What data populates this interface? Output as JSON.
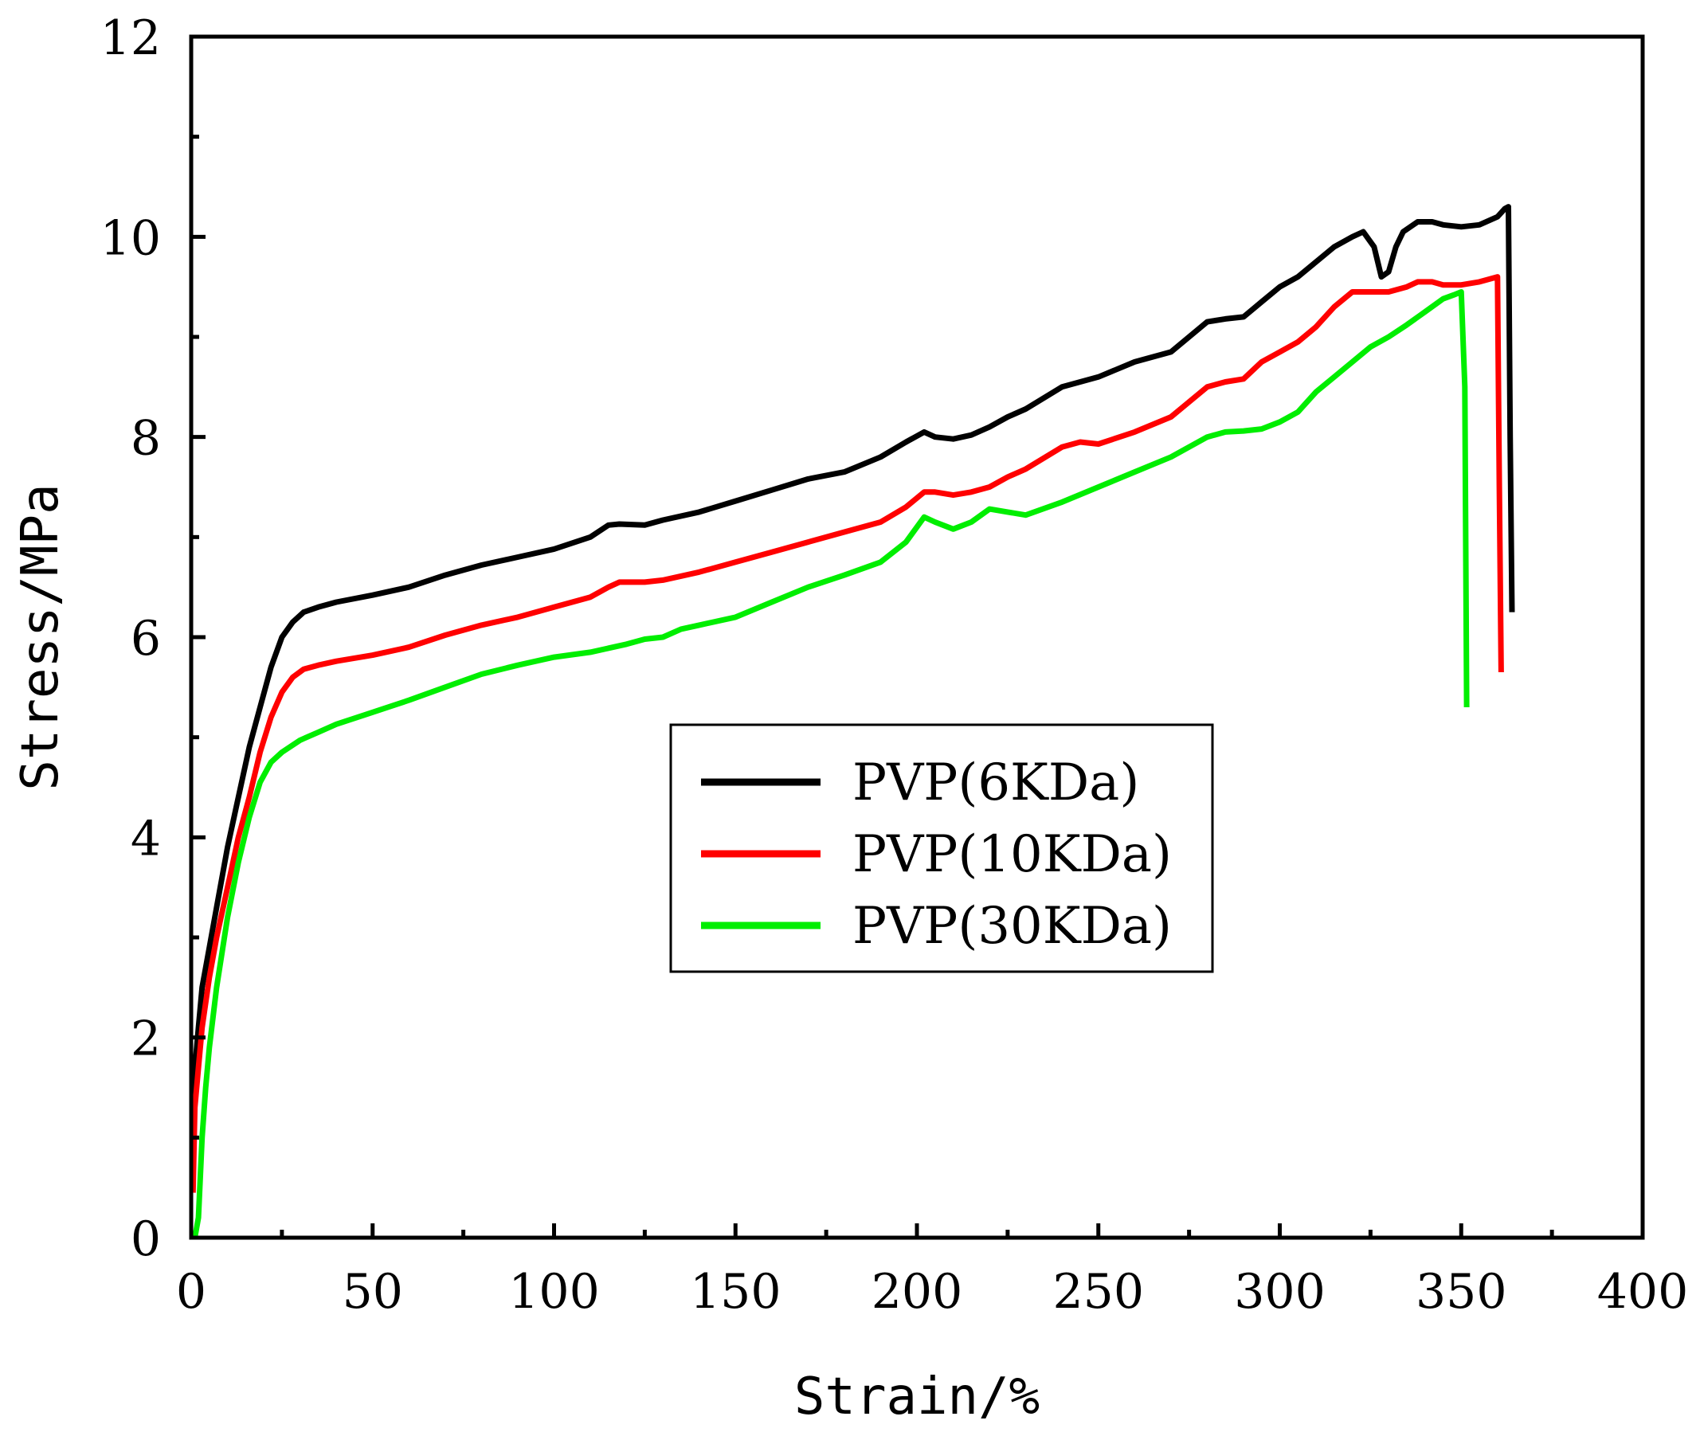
{
  "chart_data": {
    "type": "line",
    "title": "",
    "xlabel": "Strain/%",
    "ylabel": "Stress/MPa",
    "xlim": [
      0,
      400
    ],
    "ylim": [
      0,
      12
    ],
    "xticks": [
      0,
      50,
      100,
      150,
      200,
      250,
      300,
      350,
      400
    ],
    "yticks": [
      0,
      2,
      4,
      6,
      8,
      10,
      12
    ],
    "grid": false,
    "legend_position": "center",
    "series": [
      {
        "name": "PVP(6KDa)",
        "color": "#000000",
        "x": [
          0.5,
          1,
          2,
          3,
          5,
          7,
          10,
          13,
          16,
          19,
          22,
          25,
          28,
          31,
          35,
          40,
          50,
          60,
          70,
          80,
          90,
          100,
          110,
          115,
          118,
          125,
          130,
          140,
          150,
          160,
          170,
          180,
          190,
          197,
          202,
          205,
          210,
          215,
          220,
          225,
          230,
          240,
          245,
          250,
          260,
          270,
          280,
          285,
          290,
          295,
          300,
          305,
          310,
          315,
          320,
          323,
          326,
          328,
          330,
          332,
          334,
          338,
          342,
          345,
          350,
          355,
          360,
          362,
          363,
          363.5,
          364
        ],
        "y": [
          0.9,
          1.7,
          2.1,
          2.5,
          2.9,
          3.3,
          3.9,
          4.4,
          4.9,
          5.3,
          5.7,
          6.0,
          6.15,
          6.25,
          6.3,
          6.35,
          6.42,
          6.5,
          6.62,
          6.72,
          6.8,
          6.88,
          7.0,
          7.12,
          7.13,
          7.12,
          7.17,
          7.25,
          7.36,
          7.47,
          7.58,
          7.65,
          7.8,
          7.95,
          8.05,
          8.0,
          7.98,
          8.02,
          8.1,
          8.2,
          8.28,
          8.5,
          8.55,
          8.6,
          8.75,
          8.85,
          9.15,
          9.18,
          9.2,
          9.35,
          9.5,
          9.6,
          9.75,
          9.9,
          10.0,
          10.05,
          9.9,
          9.6,
          9.65,
          9.9,
          10.05,
          10.15,
          10.15,
          10.12,
          10.1,
          10.12,
          10.2,
          10.28,
          10.3,
          8.0,
          6.25
        ]
      },
      {
        "name": "PVP(10KDa)",
        "color": "#ff0000",
        "x": [
          0.5,
          1,
          2,
          3,
          5,
          7,
          10,
          13,
          16,
          19,
          22,
          25,
          28,
          31,
          35,
          40,
          50,
          60,
          70,
          80,
          90,
          100,
          110,
          115,
          118,
          125,
          130,
          140,
          150,
          160,
          170,
          180,
          190,
          197,
          202,
          205,
          210,
          215,
          220,
          225,
          230,
          240,
          245,
          250,
          260,
          270,
          280,
          285,
          290,
          295,
          300,
          305,
          310,
          315,
          320,
          325,
          330,
          335,
          338,
          342,
          345,
          350,
          355,
          358,
          360,
          360.5,
          361
        ],
        "y": [
          0.45,
          1.3,
          1.7,
          2.1,
          2.6,
          3.0,
          3.5,
          4.0,
          4.4,
          4.85,
          5.2,
          5.45,
          5.6,
          5.68,
          5.72,
          5.76,
          5.82,
          5.9,
          6.02,
          6.12,
          6.2,
          6.3,
          6.4,
          6.5,
          6.55,
          6.55,
          6.57,
          6.65,
          6.75,
          6.85,
          6.95,
          7.05,
          7.15,
          7.3,
          7.45,
          7.45,
          7.42,
          7.45,
          7.5,
          7.6,
          7.68,
          7.9,
          7.95,
          7.93,
          8.05,
          8.2,
          8.5,
          8.55,
          8.58,
          8.75,
          8.85,
          8.95,
          9.1,
          9.3,
          9.45,
          9.45,
          9.45,
          9.5,
          9.55,
          9.55,
          9.52,
          9.52,
          9.55,
          9.58,
          9.6,
          7.5,
          5.65
        ]
      },
      {
        "name": "PVP(30KDa)",
        "color": "#00ee00",
        "x": [
          1,
          2,
          3,
          4,
          5,
          7,
          10,
          13,
          16,
          19,
          22,
          25,
          30,
          35,
          40,
          50,
          60,
          70,
          80,
          90,
          100,
          110,
          120,
          125,
          130,
          135,
          140,
          150,
          160,
          170,
          180,
          190,
          197,
          202,
          205,
          210,
          215,
          220,
          225,
          230,
          240,
          250,
          260,
          270,
          280,
          285,
          290,
          295,
          300,
          305,
          310,
          315,
          320,
          325,
          330,
          335,
          340,
          345,
          348,
          350,
          351,
          351.5
        ],
        "y": [
          0.0,
          0.2,
          1.0,
          1.5,
          1.9,
          2.5,
          3.2,
          3.75,
          4.2,
          4.55,
          4.75,
          4.85,
          4.97,
          5.05,
          5.13,
          5.25,
          5.37,
          5.5,
          5.63,
          5.72,
          5.8,
          5.85,
          5.93,
          5.98,
          6.0,
          6.08,
          6.12,
          6.2,
          6.35,
          6.5,
          6.62,
          6.75,
          6.95,
          7.2,
          7.15,
          7.08,
          7.15,
          7.28,
          7.25,
          7.22,
          7.35,
          7.5,
          7.65,
          7.8,
          8.0,
          8.05,
          8.06,
          8.08,
          8.15,
          8.25,
          8.45,
          8.6,
          8.75,
          8.9,
          9.0,
          9.12,
          9.25,
          9.38,
          9.42,
          9.45,
          8.5,
          5.3
        ]
      }
    ]
  }
}
